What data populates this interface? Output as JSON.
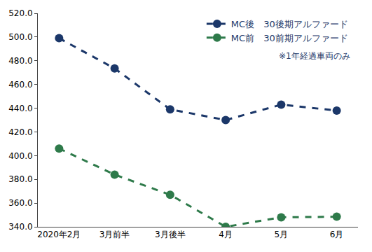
{
  "chart_data": {
    "type": "line",
    "categories": [
      "2020年2月",
      "3月前半",
      "3月後半",
      "4月",
      "5月",
      "6月"
    ],
    "series": [
      {
        "name": "MC後　30後期アルファード",
        "color": "#1b3769",
        "values": [
          499,
          473.5,
          439,
          430,
          443,
          438
        ],
        "marker": "circle",
        "line_style": "dash"
      },
      {
        "name": "MC前　30前期アルファード",
        "color": "#2e7a4a",
        "values": [
          406,
          384,
          367,
          340,
          348,
          348.5
        ],
        "marker": "circle",
        "line_style": "dash"
      }
    ],
    "annotations": [
      {
        "text": "※1年経過車両のみ"
      }
    ],
    "ylim": [
      340,
      520
    ],
    "yticks": [
      {
        "value": 340,
        "label": "340.0"
      },
      {
        "value": 360,
        "label": "360.0"
      },
      {
        "value": 380,
        "label": "380.0"
      },
      {
        "value": 400,
        "label": "400.0"
      },
      {
        "value": 420,
        "label": "420.0"
      },
      {
        "value": 440,
        "label": "440.0"
      },
      {
        "value": 460,
        "label": "460.0"
      },
      {
        "value": 480,
        "label": "480.0"
      },
      {
        "value": 500,
        "label": "500.0"
      },
      {
        "value": 520,
        "label": "520.0"
      }
    ],
    "grid": false,
    "legend": "upper right"
  }
}
